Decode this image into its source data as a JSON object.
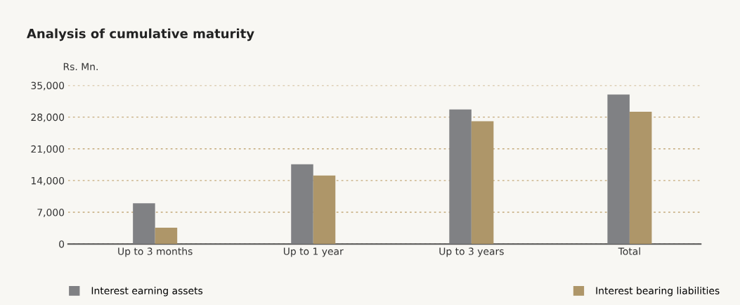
{
  "chart_data": {
    "type": "bar",
    "title": "Analysis of cumulative maturity",
    "ylabel": "Rs. Mn.",
    "categories": [
      "Up to 3 months",
      "Up to 1 year",
      "Up to 3 years",
      "Total"
    ],
    "series": [
      {
        "name": "Interest earning assets",
        "color": "#808184",
        "values": [
          9000,
          17600,
          29700,
          33000
        ]
      },
      {
        "name": "Interest bearing liabilities",
        "color": "#ae9669",
        "values": [
          3600,
          15100,
          27100,
          29200
        ]
      }
    ],
    "ylim": [
      0,
      35000
    ],
    "yticks": [
      {
        "value": 0,
        "label": "0"
      },
      {
        "value": 7000,
        "label": "7,000"
      },
      {
        "value": 14000,
        "label": "14,000"
      },
      {
        "value": 21000,
        "label": "21,000"
      },
      {
        "value": 28000,
        "label": "28,000"
      },
      {
        "value": 35000,
        "label": "35,000"
      }
    ],
    "grid": "y",
    "legend": "bottom"
  }
}
